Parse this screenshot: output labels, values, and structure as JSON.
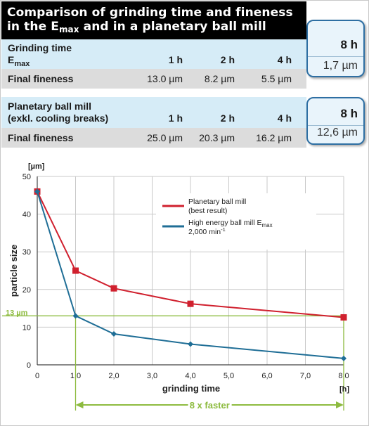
{
  "header": {
    "title_line1": "Comparison of grinding time and fineness",
    "title_line2_pre": "in the E",
    "title_line2_sub": "max",
    "title_line2_post": " and in a planetary ball mill"
  },
  "table": {
    "emax": {
      "label_line1": "Grinding time",
      "label_line2": "E",
      "label_line2_sub": "max",
      "times": [
        "1 h",
        "2 h",
        "4 h"
      ],
      "fineness_label": "Final fineness",
      "fineness": [
        "13.0 µm",
        "8.2 µm",
        "5.5 µm"
      ]
    },
    "planetary": {
      "label_line1": "Planetary ball mill",
      "label_line2": "(exkl. cooling breaks)",
      "times": [
        "1 h",
        "2 h",
        "4 h"
      ],
      "fineness_label": "Final fineness",
      "fineness": [
        "25.0 µm",
        "20.3 µm",
        "16.2 µm"
      ]
    }
  },
  "callouts": {
    "emax": {
      "time": "8 h",
      "value": "1,7 µm"
    },
    "planetary": {
      "time": "8 h",
      "value": "12,6 µm"
    }
  },
  "chart_data": {
    "type": "line",
    "xlabel": "grinding time",
    "x_unit": "[h]",
    "ylabel": "particle size",
    "y_unit": "[µm]",
    "xlim": [
      0,
      8
    ],
    "ylim": [
      0,
      50
    ],
    "x_ticks": [
      "0",
      "1,0",
      "2,0",
      "3,0",
      "4,0",
      "5,0",
      "6,0",
      "7,0",
      "8,0"
    ],
    "y_ticks": [
      "0",
      "10",
      "20",
      "30",
      "40",
      "50"
    ],
    "grid": true,
    "legend_position": "top-right",
    "series": [
      {
        "name": "Planetary ball mill",
        "name_line2": "(best result)",
        "color": "#d0202e",
        "marker": "square",
        "x": [
          0,
          1,
          2,
          4,
          8
        ],
        "y": [
          46,
          25,
          20.3,
          16.2,
          12.6
        ]
      },
      {
        "name": "High energy ball mill E",
        "name_sub": "max",
        "name_line2": "2,000 min",
        "name_line2_sup": "-1",
        "color": "#1f6e96",
        "marker": "diamond",
        "x": [
          0,
          1,
          2,
          4,
          8
        ],
        "y": [
          46,
          13.0,
          8.2,
          5.5,
          1.7
        ]
      }
    ],
    "annotations": {
      "highlight_value_label": "13 µm",
      "highlight_value": 13,
      "highlight_color": "#8dbb3f",
      "span_from": 1,
      "span_to": 8,
      "span_label": "8 x faster"
    }
  }
}
